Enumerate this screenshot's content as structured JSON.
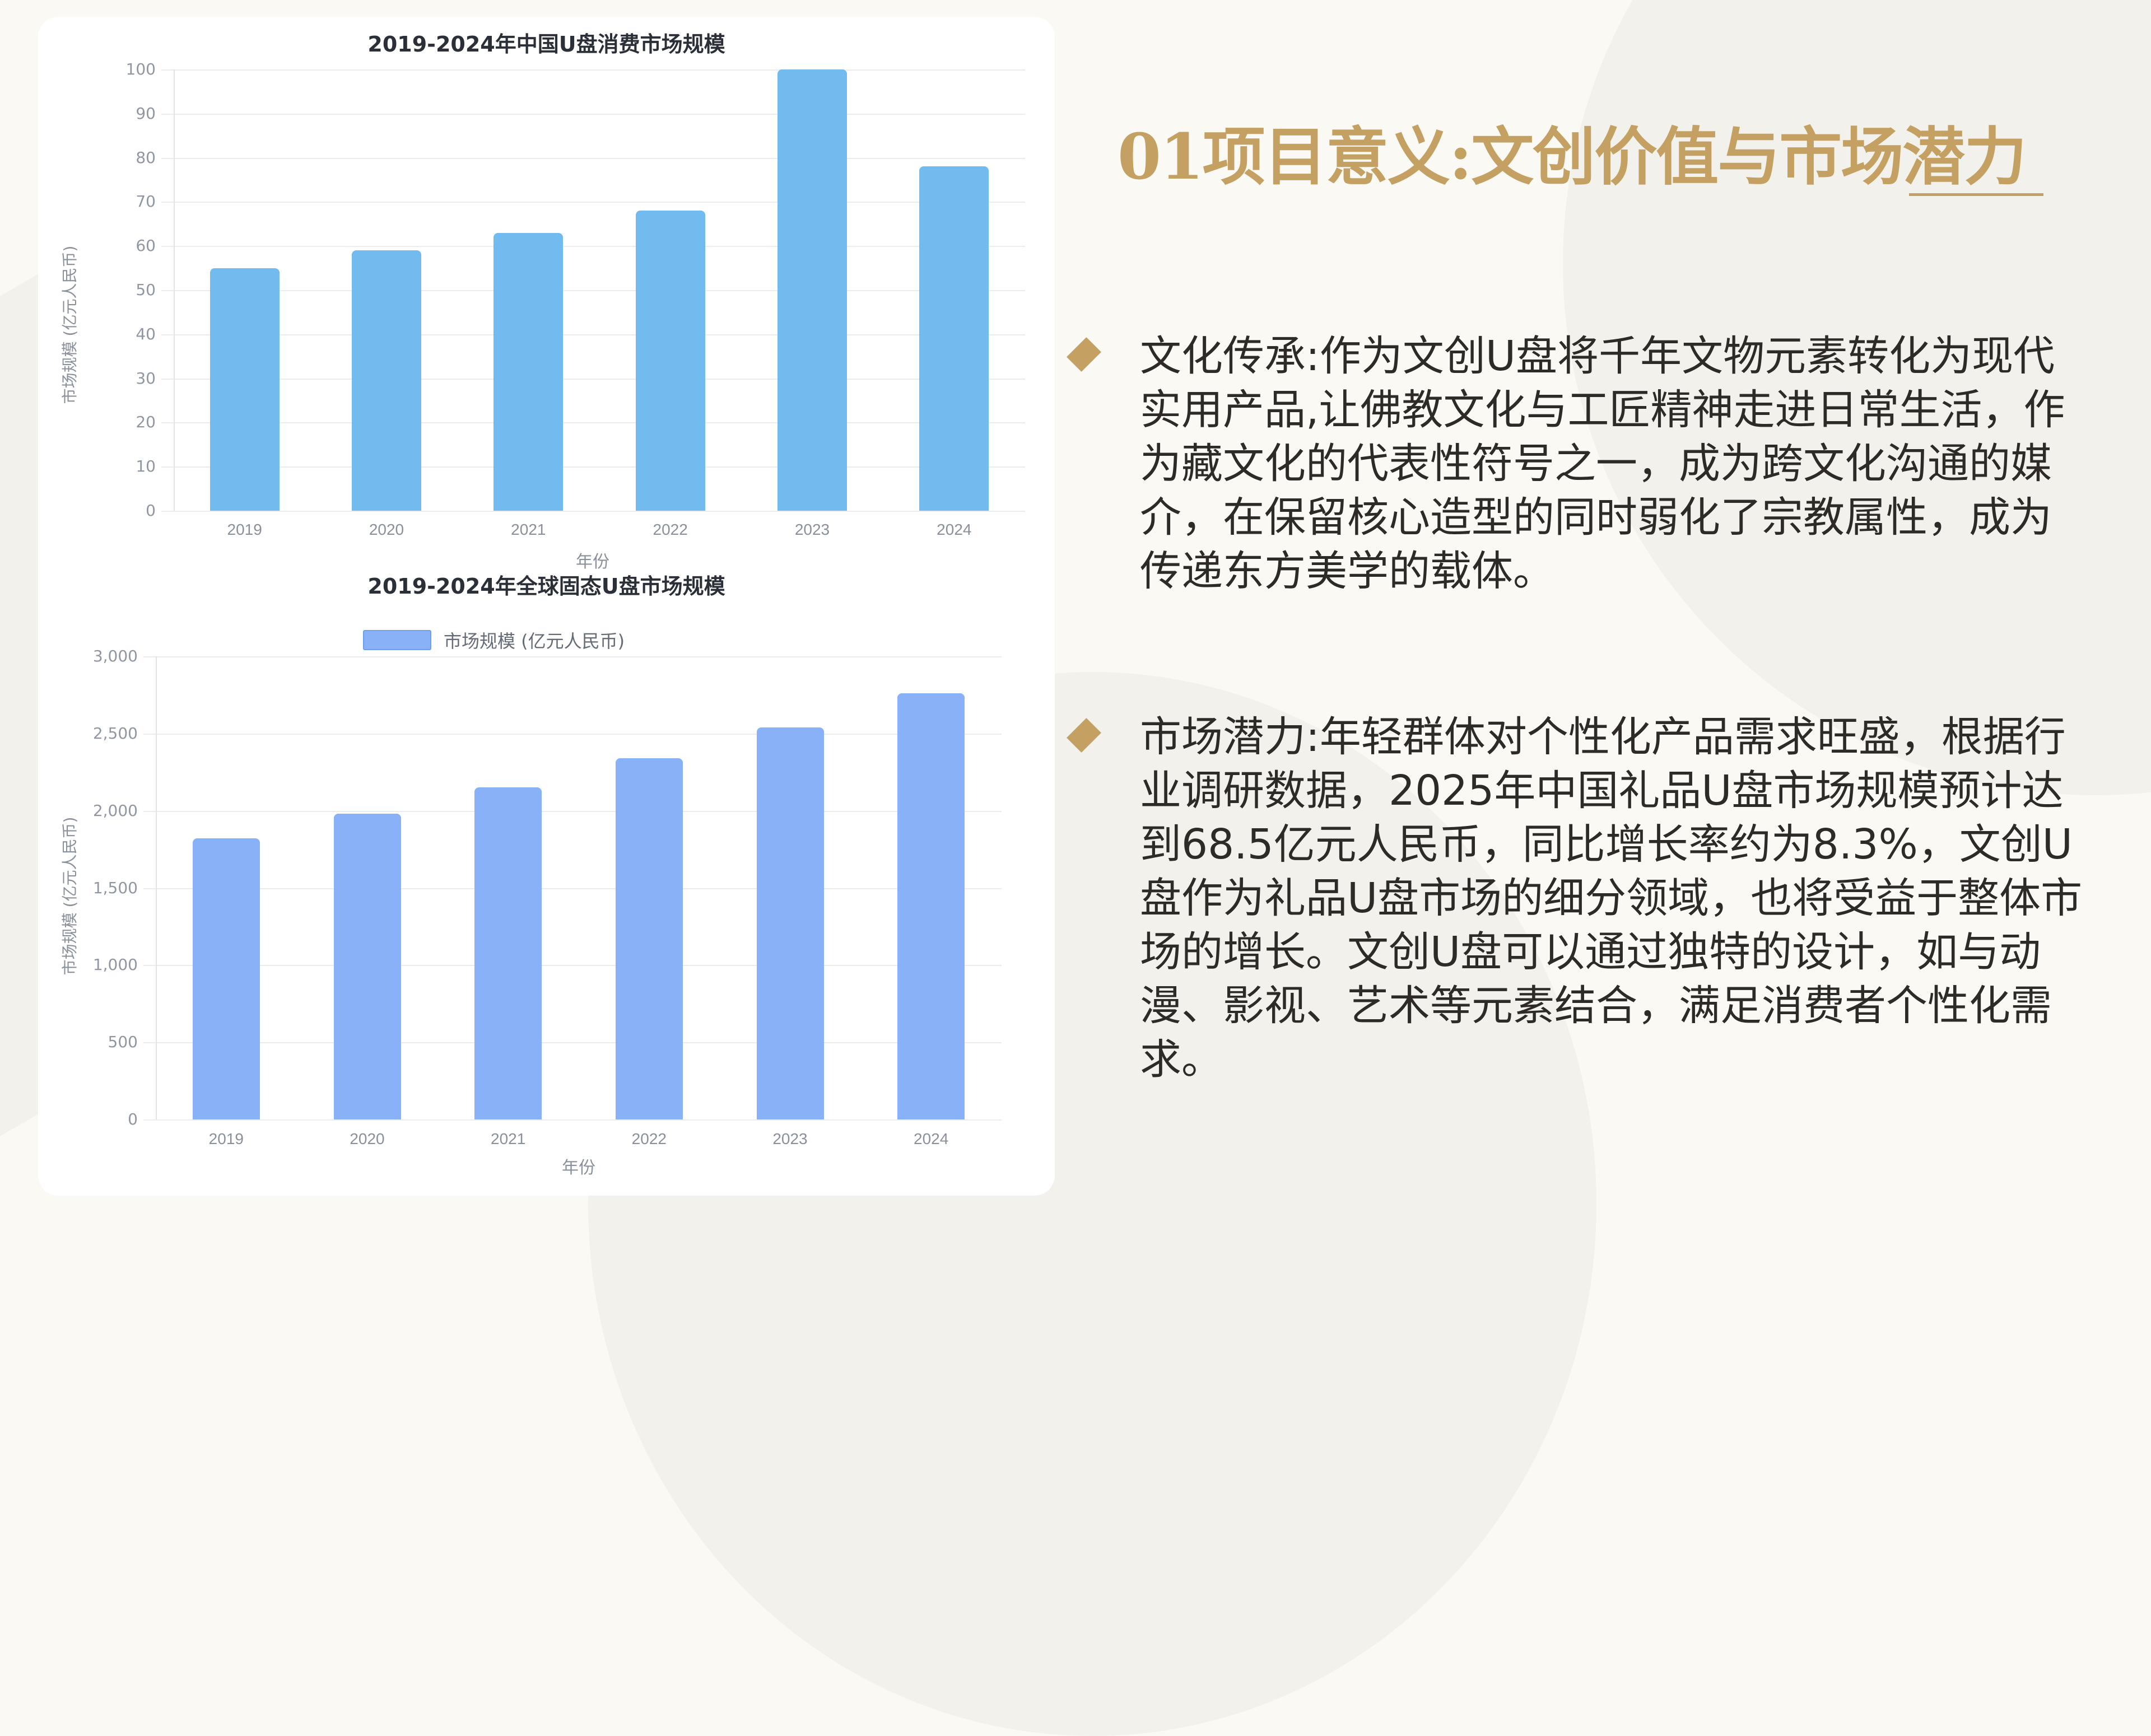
{
  "slide": {
    "title": "01项目意义:文创价值与市场潜力",
    "accent_color": "#c4a162",
    "bullets": [
      {
        "icon": "diamond-bullet-icon",
        "text": "文化传承:作为文创U盘将千年文物元素转化为现代实用产品,让佛教文化与工匠精神走进日常生活，作为藏文化的代表性符号之一，成为跨文化沟通的媒介，在保留核心造型的同时弱化了宗教属性，成为传递东方美学的载体。"
      },
      {
        "icon": "diamond-bullet-icon",
        "text": "市场潜力:年轻群体对个性化产品需求旺盛，根据行业调研数据，2025年中国礼品U盘市场规模预计达到68.5亿元人民币，同比增长率约为8.3%，文创U盘作为礼品U盘市场的细分领域，也将受益于整体市场的增长。文创U盘可以通过独特的设计，如与动漫、影视、艺术等元素结合，满足消费者个性化需求。"
      }
    ]
  },
  "chart_data": [
    {
      "type": "bar",
      "title": "2019-2024年中国U盘消费市场规模",
      "categories": [
        "2019",
        "2020",
        "2021",
        "2022",
        "2023",
        "2024"
      ],
      "values": [
        55,
        59,
        63,
        68,
        100,
        78
      ],
      "xlabel": "年份",
      "ylabel": "市场规模 (亿元人民币)",
      "ylim": [
        0,
        100
      ],
      "yticks": [
        "0",
        "10",
        "20",
        "30",
        "40",
        "50",
        "60",
        "70",
        "80",
        "90",
        "100"
      ],
      "grid": true,
      "legend": null,
      "color": "#72bbee"
    },
    {
      "type": "bar",
      "title": "2019-2024年全球固态U盘市场规模",
      "categories": [
        "2019",
        "2020",
        "2021",
        "2022",
        "2023",
        "2024"
      ],
      "values": [
        1820,
        1980,
        2150,
        2340,
        2540,
        2760
      ],
      "xlabel": "年份",
      "ylabel": "市场规模 (亿元人民币)",
      "ylim": [
        0,
        3000
      ],
      "yticks": [
        "0",
        "500",
        "1,000",
        "1,500",
        "2,000",
        "2,500",
        "3,000"
      ],
      "grid": true,
      "legend": {
        "position": "top",
        "entries": [
          "市场规模 (亿元人民币)"
        ]
      },
      "color": "#88b1f7"
    }
  ]
}
